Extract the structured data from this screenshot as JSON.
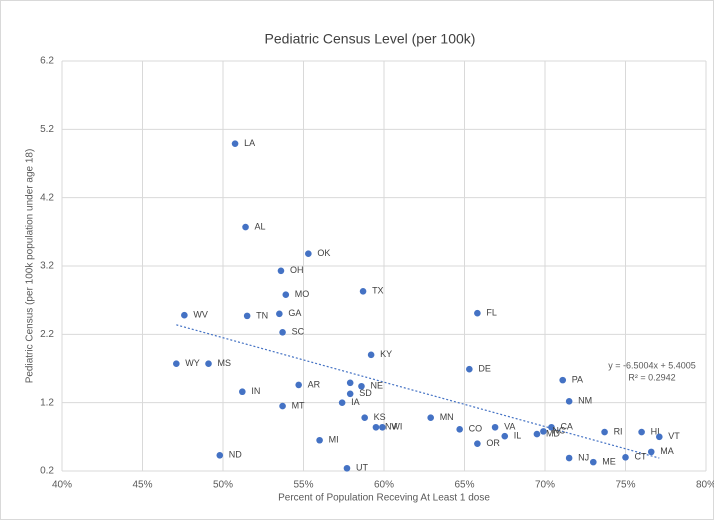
{
  "chart_data": {
    "type": "scatter",
    "title": "Pediatric Census Level  (per 100k)",
    "x_label": "Percent of Population Receving At Least  1 dose",
    "y_label": "Pediatric Census (per 100k population under age 18)",
    "xlim": [
      0.4,
      0.8
    ],
    "xticks": [
      {
        "value": 0.4,
        "label": "40%"
      },
      {
        "value": 0.45,
        "label": "45%"
      },
      {
        "value": 0.5,
        "label": "50%"
      },
      {
        "value": 0.55,
        "label": "55%"
      },
      {
        "value": 0.6,
        "label": "60%"
      },
      {
        "value": 0.65,
        "label": "65%"
      },
      {
        "value": 0.7,
        "label": "70%"
      },
      {
        "value": 0.75,
        "label": "75%"
      },
      {
        "value": 0.8,
        "label": "80%"
      }
    ],
    "ylim": [
      0.2,
      6.2
    ],
    "yticks": [
      0.2,
      1.2,
      2.2,
      3.2,
      4.2,
      5.2,
      6.2
    ],
    "grid": true,
    "series": [
      {
        "color": "#4472c4",
        "labels": [
          "LA",
          "AL",
          "OK",
          "OH",
          "MO",
          "TX",
          "GA",
          "WV",
          "TN",
          "FL",
          "SC",
          "KY",
          "WY",
          "MS",
          "DE",
          "PA",
          "AR",
          null,
          "NE",
          "IN",
          "SD",
          "NM",
          "IA",
          "MT",
          "KS",
          "MN",
          "NV",
          "WI",
          "CO",
          "VA",
          "CA",
          "MD",
          "NC",
          "RI",
          "HI",
          "VT",
          "IL",
          "MI",
          "OR",
          "MA",
          "ND",
          "NJ",
          "CT",
          "ME",
          "UT"
        ],
        "x": [
          0.5075,
          0.514,
          0.553,
          0.536,
          0.539,
          0.587,
          0.535,
          0.476,
          0.515,
          0.658,
          0.537,
          0.592,
          0.471,
          0.491,
          0.653,
          0.711,
          0.547,
          0.579,
          0.586,
          0.512,
          0.579,
          0.715,
          0.574,
          0.537,
          0.588,
          0.629,
          0.595,
          0.599,
          0.647,
          0.669,
          0.704,
          0.695,
          0.699,
          0.737,
          0.76,
          0.771,
          0.675,
          0.56,
          0.658,
          0.766,
          0.498,
          0.715,
          0.75,
          0.73,
          0.577
        ],
        "values": [
          4.99,
          3.77,
          3.38,
          3.13,
          2.78,
          2.83,
          2.5,
          2.48,
          2.47,
          2.51,
          2.23,
          1.9,
          1.77,
          1.77,
          1.69,
          1.53,
          1.46,
          1.49,
          1.44,
          1.36,
          1.33,
          1.22,
          1.2,
          1.15,
          0.98,
          0.98,
          0.84,
          0.84,
          0.81,
          0.84,
          0.84,
          0.74,
          0.78,
          0.77,
          0.77,
          0.7,
          0.71,
          0.65,
          0.6,
          0.48,
          0.43,
          0.39,
          0.4,
          0.33,
          0.24
        ]
      }
    ],
    "trendline": {
      "slope": -6.5004,
      "intercept": 5.4005,
      "equation": "y = -6.5004x + 5.4005",
      "r2": "R² = 0.2942",
      "color": "#4472c4"
    }
  }
}
